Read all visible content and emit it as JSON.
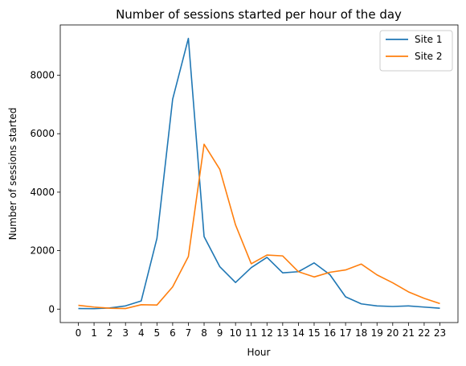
{
  "chart_data": {
    "type": "line",
    "title": "Number of sessions started per hour of the day",
    "xlabel": "Hour",
    "ylabel": "Number of sessions started",
    "x": [
      0,
      1,
      2,
      3,
      4,
      5,
      6,
      7,
      8,
      9,
      10,
      11,
      12,
      13,
      14,
      15,
      16,
      17,
      18,
      19,
      20,
      21,
      22,
      23
    ],
    "xticks": [
      "0",
      "1",
      "2",
      "3",
      "4",
      "5",
      "6",
      "7",
      "8",
      "9",
      "10",
      "11",
      "12",
      "13",
      "14",
      "15",
      "16",
      "17",
      "18",
      "19",
      "20",
      "21",
      "22",
      "23"
    ],
    "yticks": [
      0,
      2000,
      4000,
      6000,
      8000
    ],
    "xlim": [
      -1.15,
      24.15
    ],
    "ylim": [
      -460,
      9720
    ],
    "grid": false,
    "legend_position": "top-right",
    "series": [
      {
        "name": "Site 1",
        "color": "#1f77b4",
        "values": [
          20,
          15,
          40,
          110,
          280,
          2420,
          7180,
          9260,
          2480,
          1450,
          910,
          1420,
          1770,
          1240,
          1280,
          1580,
          1180,
          420,
          180,
          110,
          90,
          110,
          70,
          30
        ]
      },
      {
        "name": "Site 2",
        "color": "#ff7f0e",
        "values": [
          130,
          70,
          30,
          20,
          150,
          140,
          760,
          1800,
          5640,
          4780,
          2880,
          1550,
          1850,
          1820,
          1280,
          1100,
          1260,
          1340,
          1540,
          1170,
          900,
          590,
          370,
          190
        ]
      }
    ]
  }
}
